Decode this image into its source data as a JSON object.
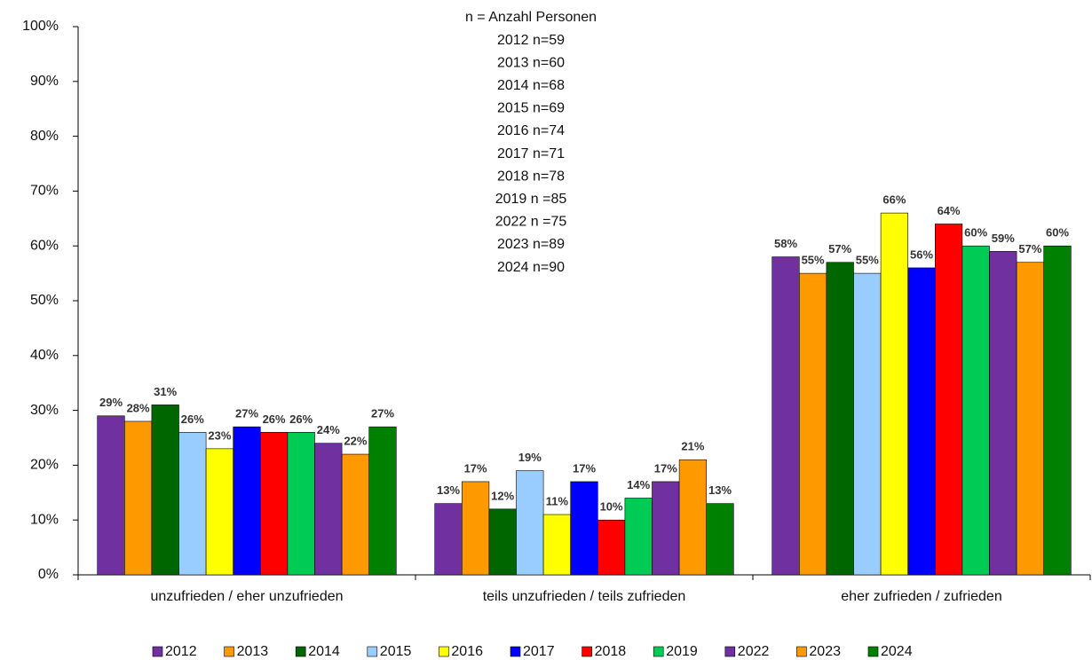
{
  "chart_data": {
    "type": "bar",
    "annotation": [
      "n = Anzahl Personen",
      "2012 n=59",
      "2013 n=60",
      "2014 n=68",
      "2015 n=69",
      "2016 n=74",
      "2017 n=71",
      "2018 n=78",
      "2019 n =85",
      "2022 n =75",
      "2023 n=89",
      "2024 n=90"
    ],
    "categories": [
      "unzufrieden / eher unzufrieden",
      "teils unzufrieden / teils zufrieden",
      "eher zufrieden / zufrieden"
    ],
    "series": [
      {
        "name": "2012",
        "color": "#7030a0",
        "values": [
          29,
          13,
          58
        ],
        "value_labels": [
          "29%",
          "13%",
          "58%"
        ]
      },
      {
        "name": "2013",
        "color": "#ff9900",
        "values": [
          28,
          17,
          55
        ],
        "value_labels": [
          "28%",
          "17%",
          "55%"
        ]
      },
      {
        "name": "2014",
        "color": "#006600",
        "values": [
          31,
          12,
          57
        ],
        "value_labels": [
          "31%",
          "12%",
          "57%"
        ]
      },
      {
        "name": "2015",
        "color": "#99ccff",
        "values": [
          26,
          19,
          55
        ],
        "value_labels": [
          "26%",
          "19%",
          "55%"
        ]
      },
      {
        "name": "2016",
        "color": "#ffff00",
        "values": [
          23,
          11,
          66
        ],
        "value_labels": [
          "23%",
          "11%",
          "66%"
        ]
      },
      {
        "name": "2017",
        "color": "#0000ff",
        "values": [
          27,
          17,
          56
        ],
        "value_labels": [
          "27%",
          "17%",
          "56%"
        ]
      },
      {
        "name": "2018",
        "color": "#ff0000",
        "values": [
          26,
          10,
          64
        ],
        "value_labels": [
          "26%",
          "10%",
          "64%"
        ]
      },
      {
        "name": "2019",
        "color": "#00cc55",
        "values": [
          26,
          14,
          60
        ],
        "value_labels": [
          "26%",
          "14%",
          "60%"
        ]
      },
      {
        "name": "2022",
        "color": "#7030a0",
        "values": [
          24,
          17,
          59
        ],
        "value_labels": [
          "24%",
          "17%",
          "59%"
        ]
      },
      {
        "name": "2023",
        "color": "#ff9900",
        "values": [
          22,
          21,
          57
        ],
        "value_labels": [
          "22%",
          "21%",
          "57%"
        ]
      },
      {
        "name": "2024",
        "color": "#008000",
        "values": [
          27,
          13,
          60
        ],
        "value_labels": [
          "27%",
          "13%",
          "60%"
        ]
      }
    ],
    "ylim": [
      0,
      100
    ],
    "yticks": [
      {
        "value": 0,
        "label": "0%"
      },
      {
        "value": 10,
        "label": "10%"
      },
      {
        "value": 20,
        "label": "20%"
      },
      {
        "value": 30,
        "label": "30%"
      },
      {
        "value": 40,
        "label": "40%"
      },
      {
        "value": 50,
        "label": "50%"
      },
      {
        "value": 60,
        "label": "60%"
      },
      {
        "value": 70,
        "label": "70%"
      },
      {
        "value": 80,
        "label": "80%"
      },
      {
        "value": 90,
        "label": "90%"
      },
      {
        "value": 100,
        "label": "100%"
      }
    ],
    "grid": false
  }
}
